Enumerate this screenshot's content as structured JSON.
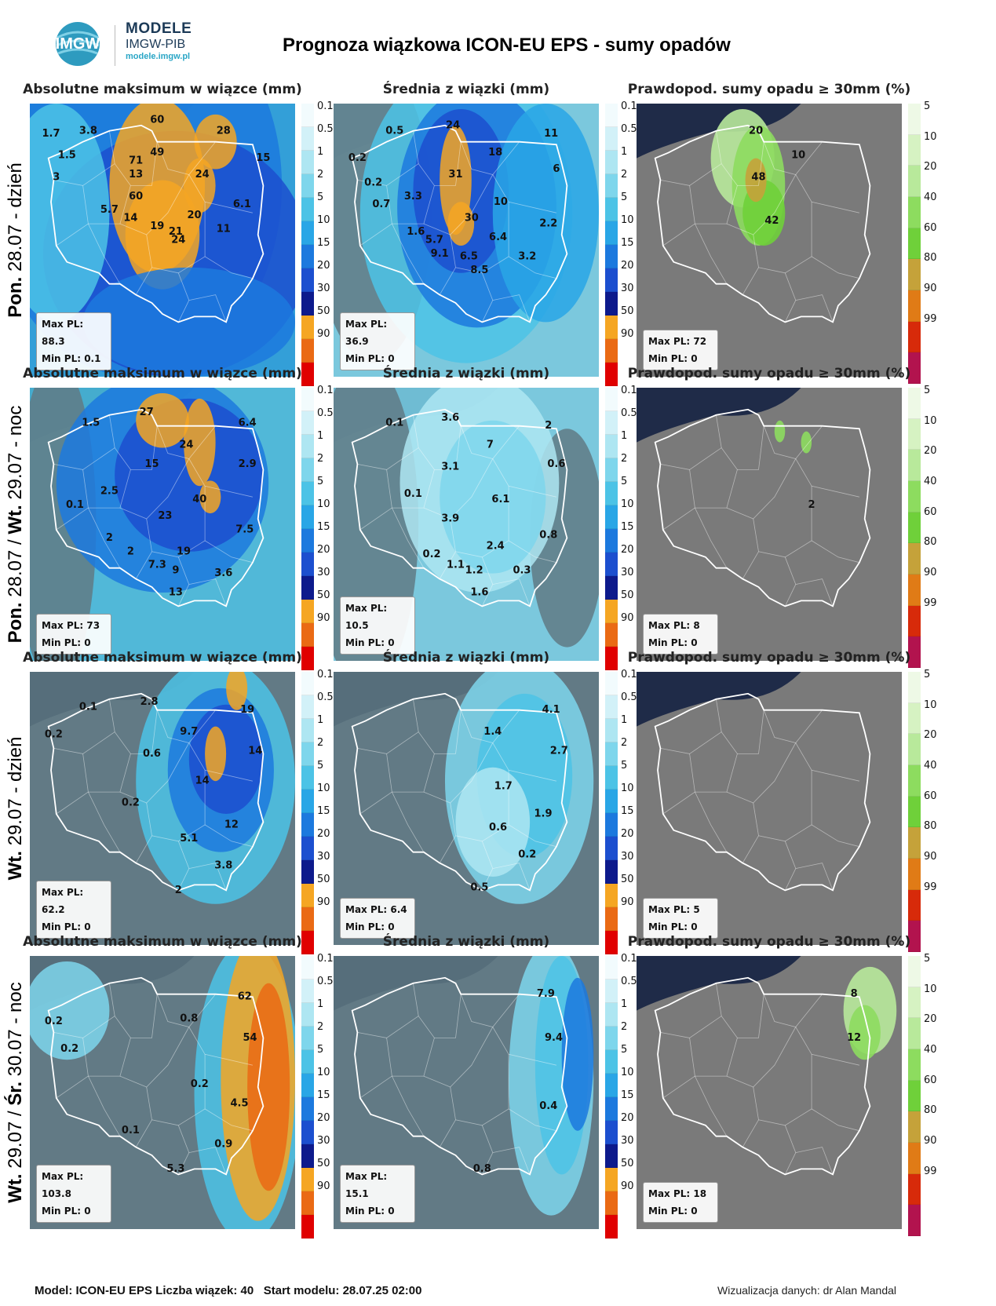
{
  "header": {
    "logo_title": "MODELE",
    "logo_subtitle": "IMGW-PIB",
    "logo_url": "modele.imgw.pl",
    "logo_mark": "IMGW",
    "title": "Prognoza wiązkowa ICON-EU EPS - sumy opadów"
  },
  "column_titles": [
    "Absolutne maksimum w wiązce (mm)",
    "Średnia z wiązki (mm)",
    "Prawdopod. sumy opadu ≥ 30mm (%)"
  ],
  "rows": [
    {
      "label_a": "Pon.",
      "label_b": " 28.07 - dzień"
    },
    {
      "label_a": "Pon.",
      "label_b": " 28.07 / ",
      "label_c": "Wt.",
      "label_d": " 29.07 - noc"
    },
    {
      "label_a": "Wt.",
      "label_b": " 29.07 - dzień"
    },
    {
      "label_a": "Wt.",
      "label_b": " 29.07 / ",
      "label_c": "Śr.",
      "label_d": " 30.07 - noc"
    }
  ],
  "colorbar_mm": {
    "ticks": [
      "0.1",
      "0.5",
      "1",
      "2",
      "5",
      "10",
      "15",
      "20",
      "30",
      "50",
      "90"
    ],
    "colors": [
      "#f2fbfd",
      "#d2f1f8",
      "#aee6f2",
      "#7ed6ec",
      "#4cc3e6",
      "#29a6e6",
      "#1c79de",
      "#1c4fcf",
      "#0d1a8c",
      "#f5a623",
      "#ea6a14",
      "#e00000"
    ]
  },
  "colorbar_prob": {
    "ticks": [
      "5",
      "10",
      "20",
      "40",
      "60",
      "80",
      "90",
      "99"
    ],
    "colors": [
      "#eef9e6",
      "#d6f2c2",
      "#b8e99b",
      "#8ddc5f",
      "#6fd03a",
      "#c5a23a",
      "#e07b16",
      "#d72a0a",
      "#b2134e"
    ]
  },
  "panels": [
    {
      "max": "Max PL: 88.3",
      "min": "Min PL: 0.1",
      "type": "max",
      "intensity": "high",
      "values": [
        [
          "60",
          "48",
          "7"
        ],
        [
          "28",
          "73",
          "11"
        ],
        [
          "3.8",
          "22",
          "11"
        ],
        [
          "1.7",
          "8",
          "12"
        ],
        [
          "49",
          "48",
          "19"
        ],
        [
          "15",
          "88",
          "21"
        ],
        [
          "1.5",
          "14",
          "20"
        ],
        [
          "71",
          "40",
          "22"
        ],
        [
          "13",
          "40",
          "27"
        ],
        [
          "3",
          "10",
          "28"
        ],
        [
          "24",
          "65",
          "27"
        ],
        [
          "60",
          "40",
          "35"
        ],
        [
          "6.1",
          "80",
          "38"
        ],
        [
          "5.7",
          "30",
          "40"
        ],
        [
          "14",
          "38",
          "43"
        ],
        [
          "20",
          "62",
          "42"
        ],
        [
          "19",
          "48",
          "46"
        ],
        [
          "21",
          "55",
          "48"
        ],
        [
          "11",
          "73",
          "47"
        ],
        [
          "24",
          "56",
          "51"
        ]
      ]
    },
    {
      "max": "Max PL: 36.9",
      "min": "Min PL: 0",
      "type": "mean",
      "intensity": "blue",
      "values": [
        [
          "0.5",
          "23",
          "11"
        ],
        [
          "24",
          "45",
          "9"
        ],
        [
          "11",
          "82",
          "12"
        ],
        [
          "0.2",
          "9",
          "21"
        ],
        [
          "18",
          "61",
          "19"
        ],
        [
          "6",
          "84",
          "25"
        ],
        [
          "0.2",
          "15",
          "30"
        ],
        [
          "31",
          "46",
          "27"
        ],
        [
          "3.3",
          "30",
          "35"
        ],
        [
          "0.7",
          "18",
          "38"
        ],
        [
          "10",
          "63",
          "37"
        ],
        [
          "30",
          "52",
          "43"
        ],
        [
          "2.2",
          "81",
          "45"
        ],
        [
          "1.6",
          "31",
          "48"
        ],
        [
          "6.4",
          "62",
          "50"
        ],
        [
          "5.7",
          "38",
          "51"
        ],
        [
          "9.1",
          "40",
          "56"
        ],
        [
          "6.5",
          "51",
          "57"
        ],
        [
          "3.2",
          "73",
          "57"
        ],
        [
          "8.5",
          "55",
          "62"
        ]
      ]
    },
    {
      "max": "Max PL: 72",
      "min": "Min PL: 0",
      "type": "prob",
      "intensity": "p1",
      "values": [
        [
          "20",
          "45",
          "11"
        ],
        [
          "10",
          "61",
          "20"
        ],
        [
          "48",
          "46",
          "28"
        ],
        [
          "42",
          "51",
          "44"
        ]
      ]
    },
    {
      "max": "Max PL: 73",
      "min": "Min PL: 0",
      "type": "max",
      "intensity": "mid",
      "values": [
        [
          "27",
          "44",
          "10"
        ],
        [
          "1.5",
          "23",
          "14"
        ],
        [
          "6.4",
          "82",
          "14"
        ],
        [
          "24",
          "59",
          "22"
        ],
        [
          "15",
          "46",
          "29"
        ],
        [
          "2.9",
          "82",
          "29"
        ],
        [
          "2.5",
          "30",
          "39"
        ],
        [
          "0.1",
          "17",
          "44"
        ],
        [
          "40",
          "64",
          "42"
        ],
        [
          "23",
          "51",
          "48"
        ],
        [
          "7.5",
          "81",
          "53"
        ],
        [
          "2",
          "30",
          "56"
        ],
        [
          "2",
          "38",
          "61"
        ],
        [
          "19",
          "58",
          "61"
        ],
        [
          "7.3",
          "48",
          "66"
        ],
        [
          "9",
          "55",
          "68"
        ],
        [
          "3.6",
          "73",
          "69"
        ],
        [
          "13",
          "55",
          "76"
        ]
      ]
    },
    {
      "max": "Max PL: 10.5",
      "min": "Min PL: 0",
      "type": "mean",
      "intensity": "light",
      "values": [
        [
          "0.1",
          "23",
          "14"
        ],
        [
          "3.6",
          "44",
          "12"
        ],
        [
          "2",
          "81",
          "15"
        ],
        [
          "7",
          "59",
          "22"
        ],
        [
          "3.1",
          "44",
          "30"
        ],
        [
          "0.6",
          "84",
          "29"
        ],
        [
          "0.1",
          "30",
          "40"
        ],
        [
          "6.1",
          "63",
          "42"
        ],
        [
          "3.9",
          "44",
          "49"
        ],
        [
          "0.8",
          "81",
          "55"
        ],
        [
          "2.4",
          "61",
          "59"
        ],
        [
          "0.2",
          "37",
          "62"
        ],
        [
          "1.1",
          "46",
          "66"
        ],
        [
          "1.2",
          "53",
          "68"
        ],
        [
          "0.3",
          "71",
          "68"
        ],
        [
          "1.6",
          "55",
          "76"
        ]
      ]
    },
    {
      "max": "Max PL: 8",
      "min": "Min PL: 0",
      "type": "prob",
      "intensity": "p2",
      "values": [
        [
          "2",
          "66",
          "44"
        ]
      ]
    },
    {
      "max": "Max PL: 62.2",
      "min": "Min PL: 0",
      "type": "max",
      "intensity": "east",
      "values": [
        [
          "0.1",
          "22",
          "14"
        ],
        [
          "2.8",
          "45",
          "12"
        ],
        [
          "19",
          "82",
          "15"
        ],
        [
          "0.2",
          "9",
          "24"
        ],
        [
          "9.7",
          "60",
          "23"
        ],
        [
          "0.6",
          "46",
          "31"
        ],
        [
          "14",
          "85",
          "30"
        ],
        [
          "14",
          "65",
          "41"
        ],
        [
          "0.2",
          "38",
          "49"
        ],
        [
          "12",
          "76",
          "57"
        ],
        [
          "5.1",
          "60",
          "62"
        ],
        [
          "3.8",
          "73",
          "72"
        ],
        [
          "2",
          "56",
          "81"
        ]
      ]
    },
    {
      "max": "Max PL: 6.4",
      "min": "Min PL: 0",
      "type": "mean",
      "intensity": "light-east",
      "values": [
        [
          "4.1",
          "82",
          "15"
        ],
        [
          "1.4",
          "60",
          "23"
        ],
        [
          "2.7",
          "85",
          "30"
        ],
        [
          "1.7",
          "64",
          "43"
        ],
        [
          "1.9",
          "79",
          "53"
        ],
        [
          "0.6",
          "62",
          "58"
        ],
        [
          "0.2",
          "73",
          "68"
        ],
        [
          "0.5",
          "55",
          "80"
        ]
      ]
    },
    {
      "max": "Max PL: 5",
      "min": "Min PL: 0",
      "type": "prob",
      "intensity": "p3",
      "values": []
    },
    {
      "max": "Max PL: 103.8",
      "min": "Min PL: 0",
      "type": "max",
      "intensity": "east-high",
      "values": [
        [
          "62",
          "81",
          "16"
        ],
        [
          "0.2",
          "9",
          "25"
        ],
        [
          "0.8",
          "60",
          "24"
        ],
        [
          "54",
          "83",
          "31"
        ],
        [
          "0.2",
          "15",
          "35"
        ],
        [
          "0.2",
          "64",
          "48"
        ],
        [
          "4.5",
          "79",
          "55"
        ],
        [
          "0.1",
          "38",
          "65"
        ],
        [
          "0.9",
          "73",
          "70"
        ],
        [
          "5.3",
          "55",
          "79"
        ]
      ]
    },
    {
      "max": "Max PL: 15.1",
      "min": "Min PL: 0",
      "type": "mean",
      "intensity": "east-mid",
      "values": [
        [
          "7.9",
          "80",
          "15"
        ],
        [
          "9.4",
          "83",
          "31"
        ],
        [
          "0.4",
          "81",
          "56"
        ],
        [
          "0.8",
          "56",
          "79"
        ]
      ]
    },
    {
      "max": "Max PL: 18",
      "min": "Min PL: 0",
      "type": "prob",
      "intensity": "p4",
      "values": [
        [
          "8",
          "82",
          "15"
        ],
        [
          "12",
          "82",
          "31"
        ]
      ]
    }
  ],
  "footer": {
    "left": "Model: ICON-EU EPS Liczba wiązek: 40   Start modelu: 28.07.25 02:00",
    "right": "Wizualizacja danych: dr Alan Mandal"
  }
}
